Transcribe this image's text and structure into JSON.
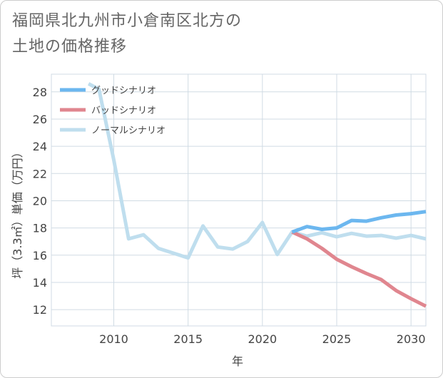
{
  "title_lines": [
    "福岡県北九州市小倉南区北方の",
    "土地の価格推移"
  ],
  "chart_data": {
    "type": "line",
    "title": "福岡県北九州市小倉南区北方の土地の価格推移",
    "xlabel": "年",
    "ylabel": "坪（3.3㎡）単価（万円）",
    "xlim": [
      2005.8,
      2031
    ],
    "ylim": [
      10.8,
      29.3
    ],
    "xticks": [
      2010,
      2015,
      2020,
      2025,
      2030
    ],
    "yticks": [
      12,
      14,
      16,
      18,
      20,
      22,
      24,
      26,
      28
    ],
    "grid": true,
    "legend_position": "top-left",
    "series": [
      {
        "name": "グッドシナリオ",
        "color": "#6cb7ef",
        "x": [
          2022,
          2023,
          2024,
          2025,
          2026,
          2027,
          2028,
          2029,
          2030,
          2031
        ],
        "y": [
          17.7,
          18.1,
          17.9,
          18.0,
          18.55,
          18.5,
          18.75,
          18.95,
          19.05,
          19.2
        ]
      },
      {
        "name": "バッドシナリオ",
        "color": "#e0868f",
        "x": [
          2022,
          2023,
          2024,
          2025,
          2026,
          2027,
          2028,
          2029,
          2030,
          2031
        ],
        "y": [
          17.7,
          17.2,
          16.5,
          15.7,
          15.15,
          14.65,
          14.2,
          13.4,
          12.8,
          12.25
        ]
      },
      {
        "name": "ノーマルシナリオ",
        "color": "#bfdeee",
        "x": [
          2008.3,
          2009,
          2010,
          2011,
          2012,
          2013,
          2014,
          2015,
          2016,
          2017,
          2018,
          2019,
          2020,
          2021,
          2022,
          2023,
          2024,
          2025,
          2026,
          2027,
          2028,
          2029,
          2030,
          2031
        ],
        "y": [
          28.6,
          28.2,
          23.0,
          17.2,
          17.5,
          16.5,
          16.15,
          15.8,
          18.15,
          16.6,
          16.45,
          17.0,
          18.4,
          16.05,
          17.7,
          17.4,
          17.65,
          17.35,
          17.6,
          17.4,
          17.45,
          17.25,
          17.45,
          17.2
        ]
      }
    ]
  }
}
